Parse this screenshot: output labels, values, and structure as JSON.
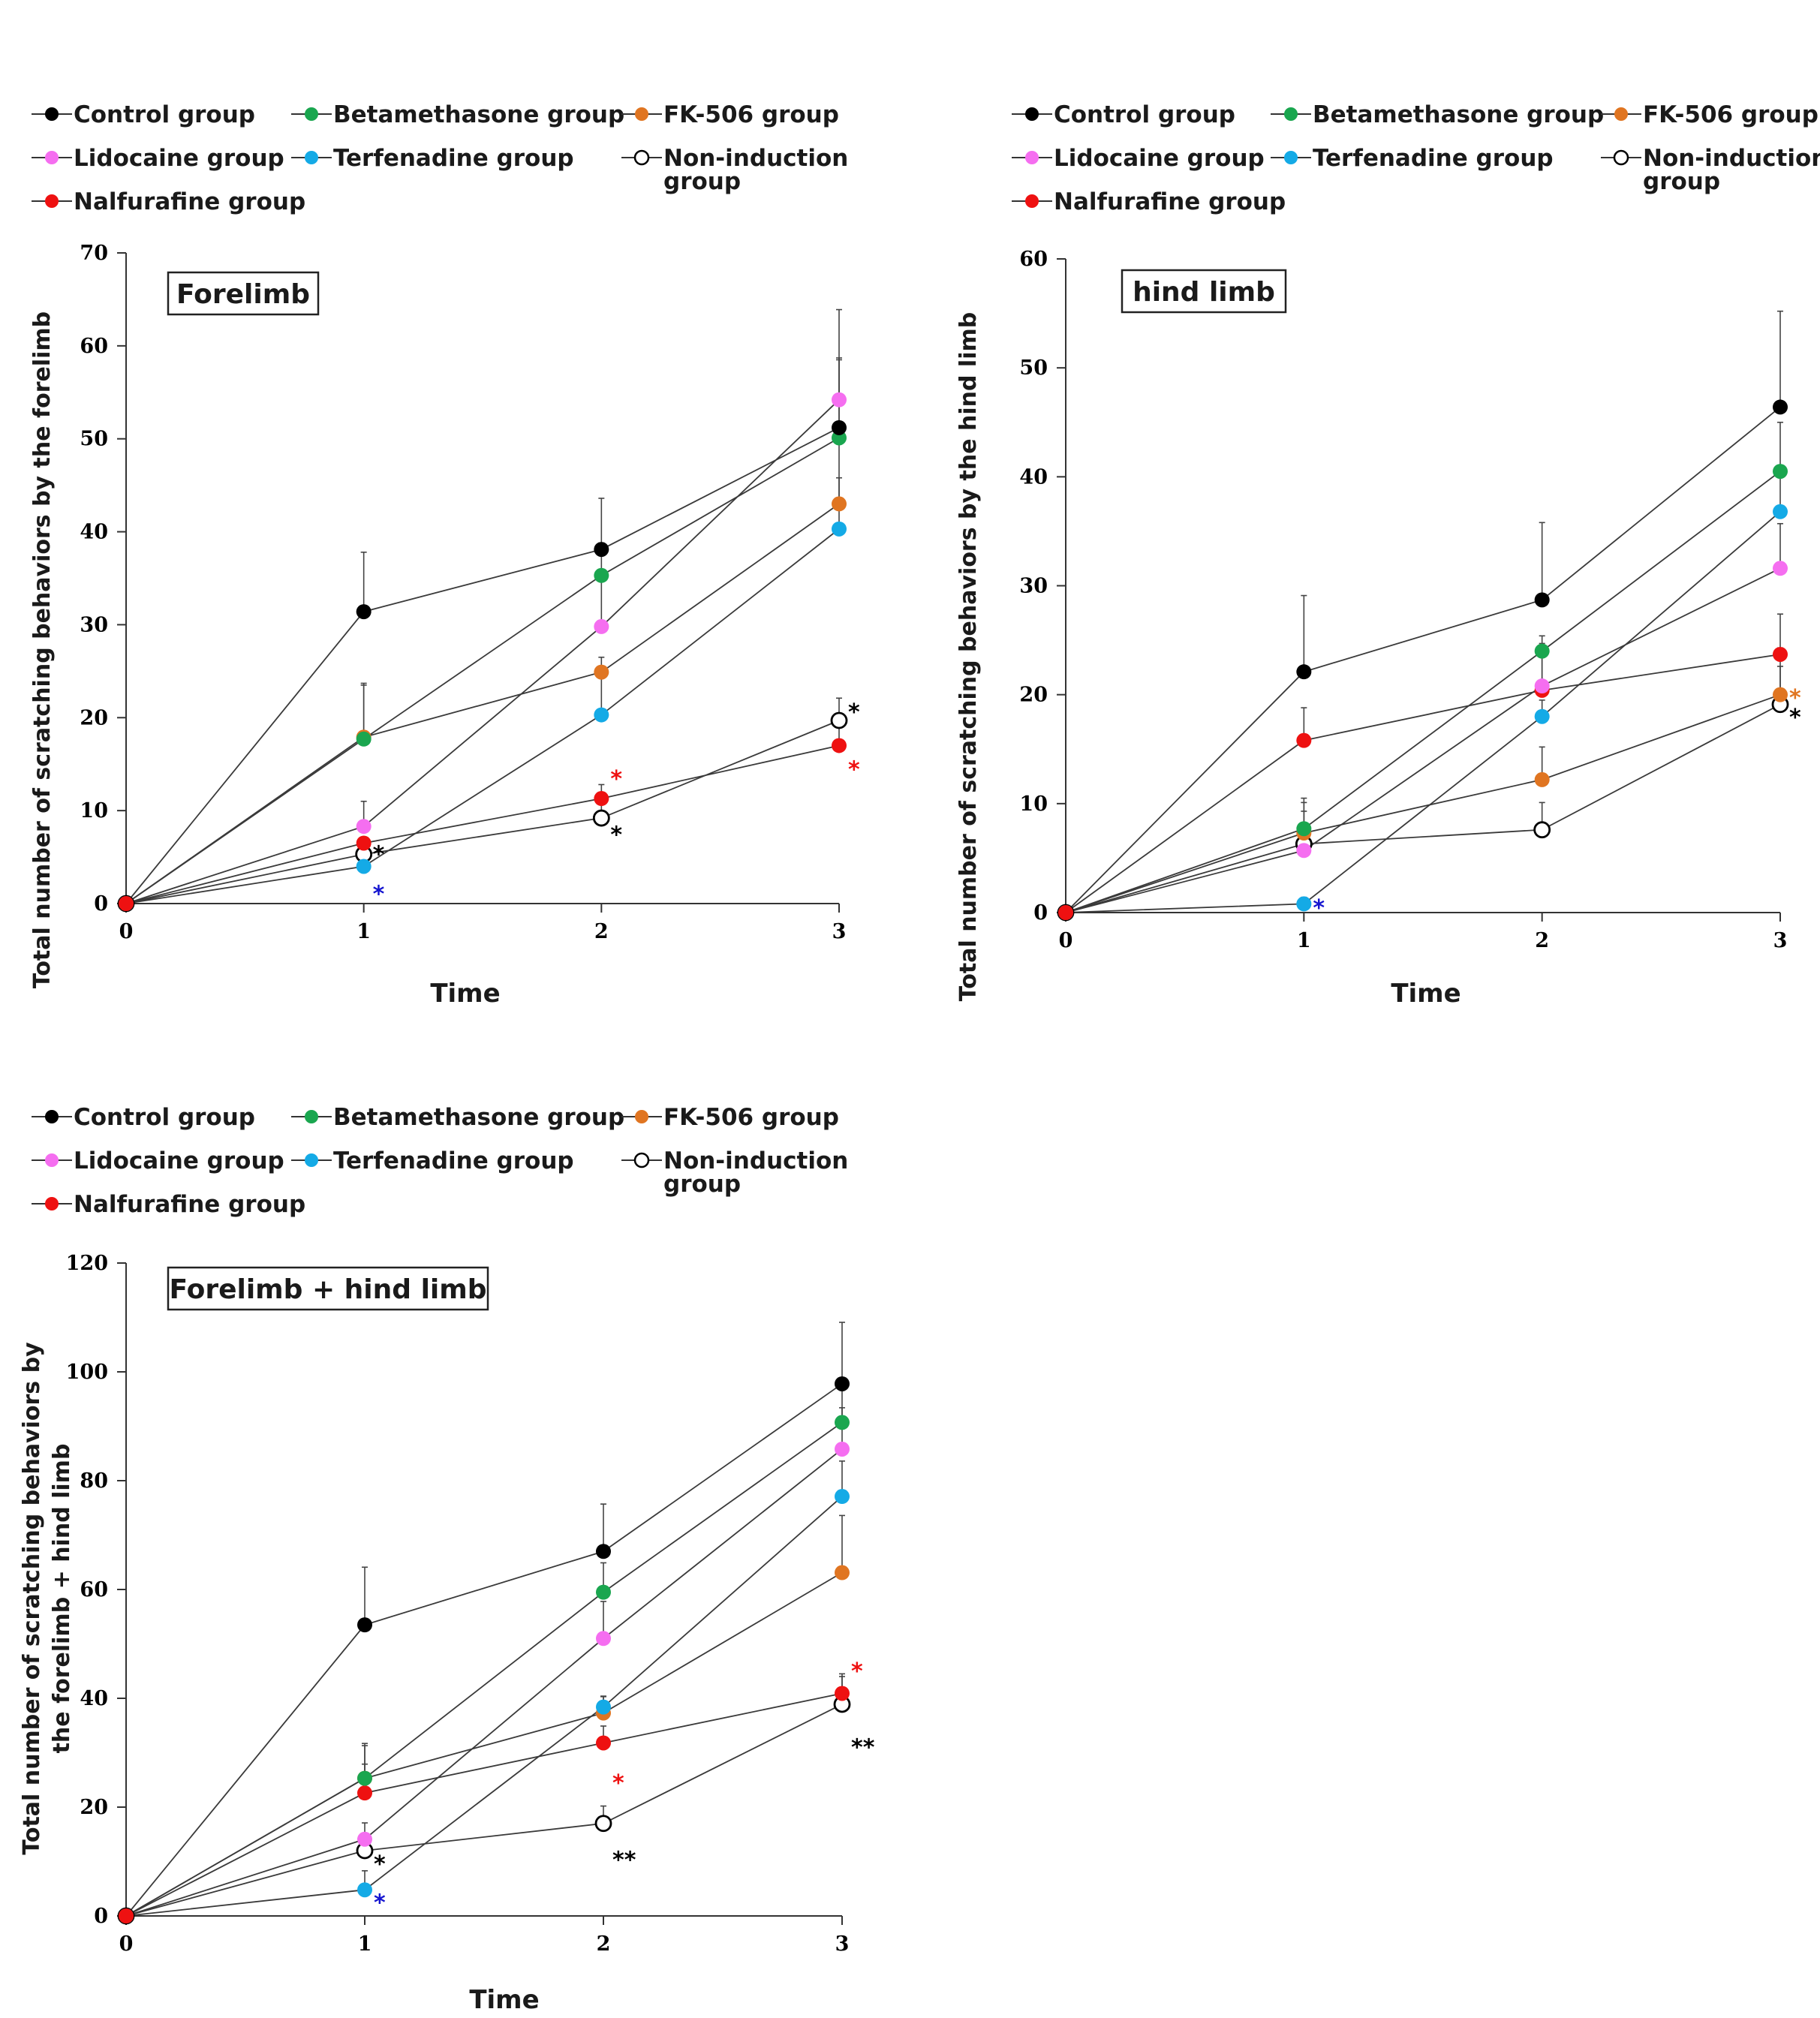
{
  "colors": {
    "Control": "#000000",
    "Betamethasone": "#1aa64f",
    "FK506": "#e07521",
    "Lidocaine": "#f56ef0",
    "Terfenadine": "#14aae6",
    "Nalfurafine": "#ee1111",
    "blue_star": "#1515d0"
  },
  "legend": {
    "control": "Control group",
    "betamethasone": "Betamethasone group",
    "fk506": "FK-506 group",
    "lidocaine": "Lidocaine group",
    "terfenadine": "Terfenadine group",
    "noninduction_line1": "Non-induction",
    "noninduction_line2": "group",
    "nalfurafine": "Nalfurafine group"
  },
  "chart_data": [
    {
      "type": "line",
      "title": "Forelimb",
      "xlabel": "Time",
      "ylabel": "Total number of scratching behaviors by the forelimb",
      "x": [
        0,
        1,
        2,
        3
      ],
      "xticks": [
        "0",
        "1",
        "2",
        "3"
      ],
      "ylim": [
        0,
        70
      ],
      "yticks": [
        "0",
        "10",
        "20",
        "30",
        "40",
        "50",
        "60",
        "70"
      ],
      "series": [
        {
          "name": "Control group",
          "key": "Control",
          "values": [
            0,
            31.4,
            38.1,
            51.2
          ],
          "err": [
            0,
            6.4,
            5.5,
            7.3
          ]
        },
        {
          "name": "Betamethasone group",
          "key": "Betamethasone",
          "values": [
            0,
            17.7,
            35.3,
            50.1
          ],
          "err": [
            0,
            5.8,
            3.5,
            8.6
          ]
        },
        {
          "name": "FK-506 group",
          "key": "FK506",
          "values": [
            0,
            17.9,
            24.9,
            43.0
          ],
          "err": [
            0,
            5.8,
            1.6,
            8.0
          ]
        },
        {
          "name": "Lidocaine group",
          "key": "Lidocaine",
          "values": [
            0,
            8.3,
            29.8,
            54.2
          ],
          "err": [
            0,
            2.7,
            5.8,
            9.7
          ]
        },
        {
          "name": "Terfenadine group",
          "key": "Terfenadine",
          "values": [
            0,
            4.0,
            20.3,
            40.3
          ],
          "err": [
            0,
            3.0,
            5.2,
            5.5
          ]
        },
        {
          "name": "Non-induction group",
          "key": "NonInduction",
          "hollow": true,
          "values": [
            0,
            5.3,
            9.2,
            19.7
          ],
          "err": [
            0,
            0,
            1.9,
            2.4
          ]
        },
        {
          "name": "Nalfurafine group",
          "key": "Nalfurafine",
          "values": [
            0,
            6.5,
            11.3,
            17.0
          ],
          "err": [
            0,
            0,
            1.5,
            2.9
          ]
        }
      ],
      "annotations": [
        {
          "text": "*",
          "x": 1,
          "y": 5.3,
          "color_key": "Control"
        },
        {
          "text": "*",
          "x": 1,
          "y": 1.0,
          "color_key": "blue_star"
        },
        {
          "text": "*",
          "x": 2,
          "y": 13.4,
          "color_key": "Nalfurafine"
        },
        {
          "text": "*",
          "x": 2,
          "y": 7.4,
          "color_key": "Control"
        },
        {
          "text": "*",
          "x": 3,
          "y": 20.6,
          "color_key": "Control"
        },
        {
          "text": "*",
          "x": 3,
          "y": 14.4,
          "color_key": "Nalfurafine"
        }
      ]
    },
    {
      "type": "line",
      "title": "hind limb",
      "xlabel": "Time",
      "ylabel": "Total number of scratching behaviors by the hind limb",
      "x": [
        0,
        1,
        2,
        3
      ],
      "xticks": [
        "0",
        "1",
        "2",
        "3"
      ],
      "ylim": [
        0,
        60
      ],
      "yticks": [
        "0",
        "10",
        "20",
        "30",
        "40",
        "50",
        "60"
      ],
      "series": [
        {
          "name": "Control group",
          "key": "Control",
          "values": [
            0,
            22.1,
            28.7,
            46.4
          ],
          "err": [
            0,
            7.0,
            7.1,
            8.8
          ]
        },
        {
          "name": "Betamethasone group",
          "key": "Betamethasone",
          "values": [
            0,
            7.7,
            24.0,
            40.5
          ],
          "err": [
            0,
            2.8,
            1.4,
            4.5
          ]
        },
        {
          "name": "FK-506 group",
          "key": "FK506",
          "values": [
            0,
            7.3,
            12.2,
            20.0
          ],
          "err": [
            0,
            2.8,
            3.0,
            4.3
          ]
        },
        {
          "name": "Lidocaine group",
          "key": "Lidocaine",
          "values": [
            0,
            5.7,
            20.8,
            31.6
          ],
          "err": [
            0,
            1.8,
            3.9,
            4.1
          ]
        },
        {
          "name": "Terfenadine group",
          "key": "Terfenadine",
          "values": [
            0,
            0.8,
            18.0,
            36.8
          ],
          "err": [
            0,
            0.6,
            1.5,
            3.3
          ]
        },
        {
          "name": "Non-induction group",
          "key": "NonInduction",
          "hollow": true,
          "values": [
            0,
            6.3,
            7.6,
            19.1
          ],
          "err": [
            0,
            3.0,
            2.5,
            3.5
          ]
        },
        {
          "name": "Nalfurafine group",
          "key": "Nalfurafine",
          "values": [
            0,
            15.8,
            20.4,
            23.7
          ],
          "err": [
            0,
            3.0,
            3.2,
            3.7
          ]
        }
      ],
      "annotations": [
        {
          "text": "*",
          "x": 1,
          "y": 0.4,
          "color_key": "blue_star"
        },
        {
          "text": "*",
          "x": 3,
          "y": 19.7,
          "color_key": "FK506"
        },
        {
          "text": "*",
          "x": 3,
          "y": 17.9,
          "color_key": "Control"
        }
      ]
    },
    {
      "type": "line",
      "title": "Forelimb + hind limb",
      "xlabel": "Time",
      "ylabel_lines": [
        "Total number of scratching behaviors by",
        "the forelimb + hind limb"
      ],
      "x": [
        0,
        1,
        2,
        3
      ],
      "xticks": [
        "0",
        "1",
        "2",
        "3"
      ],
      "ylim": [
        0,
        120
      ],
      "yticks": [
        "0",
        "20",
        "40",
        "60",
        "80",
        "100",
        "120"
      ],
      "series": [
        {
          "name": "Control group",
          "key": "Control",
          "values": [
            0,
            53.5,
            67.0,
            97.8
          ],
          "err": [
            0,
            10.6,
            8.7,
            11.3
          ]
        },
        {
          "name": "Betamethasone group",
          "key": "Betamethasone",
          "values": [
            0,
            25.3,
            59.5,
            90.7
          ],
          "err": [
            0,
            6.0,
            5.4,
            6.8
          ]
        },
        {
          "name": "FK-506 group",
          "key": "FK506",
          "values": [
            0,
            25.3,
            37.3,
            63.1
          ],
          "err": [
            0,
            6.4,
            3.1,
            10.5
          ]
        },
        {
          "name": "Lidocaine group",
          "key": "Lidocaine",
          "values": [
            0,
            14.1,
            51.0,
            85.8
          ],
          "err": [
            0,
            3.0,
            6.8,
            7.6
          ]
        },
        {
          "name": "Terfenadine group",
          "key": "Terfenadine",
          "values": [
            0,
            4.8,
            38.4,
            77.1
          ],
          "err": [
            0,
            3.5,
            1.9,
            6.5
          ]
        },
        {
          "name": "Non-induction group",
          "key": "NonInduction",
          "hollow": true,
          "values": [
            0,
            12.0,
            17.0,
            38.9
          ],
          "err": [
            0,
            0,
            3.2,
            5.1
          ]
        },
        {
          "name": "Nalfurafine group",
          "key": "Nalfurafine",
          "values": [
            0,
            22.6,
            31.8,
            40.9
          ],
          "err": [
            0,
            5.3,
            3.1,
            3.6
          ]
        }
      ],
      "annotations": [
        {
          "text": "*",
          "x": 1,
          "y": 9.5,
          "color_key": "Control"
        },
        {
          "text": "*",
          "x": 1,
          "y": 2.4,
          "color_key": "blue_star"
        },
        {
          "text": "*",
          "x": 2,
          "y": 24.4,
          "color_key": "Nalfurafine"
        },
        {
          "text": "**",
          "x": 2,
          "y": 10.3,
          "color_key": "Control"
        },
        {
          "text": "*",
          "x": 3,
          "y": 45.0,
          "color_key": "Nalfurafine"
        },
        {
          "text": "**",
          "x": 3,
          "y": 31.0,
          "color_key": "Control"
        }
      ]
    }
  ]
}
